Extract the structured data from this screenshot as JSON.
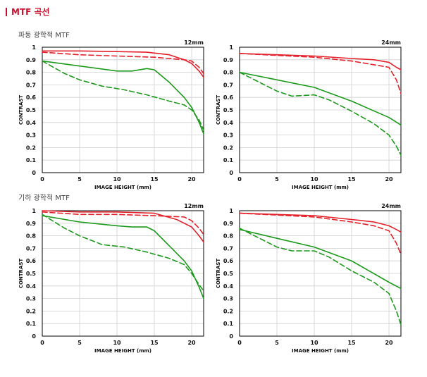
{
  "header": {
    "title": "MTF 곡선"
  },
  "sections": [
    {
      "title": "파동 광학적 MTF"
    },
    {
      "title": "기하 광학적 MTF"
    }
  ],
  "colors": {
    "sagittal_red": "#e4202a",
    "meridional_red": "#e4202a",
    "green": "#1c9a1c",
    "grid": "#cfcfcf"
  },
  "chart_data": [
    {
      "type": "line",
      "section": "파동 광학적 MTF",
      "focal_length": "12mm",
      "xlabel": "IMAGE HEIGHT (mm)",
      "ylabel": "CONTRAST",
      "xlim": [
        0,
        21.6
      ],
      "ylim": [
        0,
        1
      ],
      "xticks": [
        0,
        5,
        10,
        15,
        20
      ],
      "yticks": [
        0,
        0.1,
        0.2,
        0.3,
        0.4,
        0.5,
        0.6,
        0.7,
        0.8,
        0.9,
        1
      ],
      "grid": true,
      "series": [
        {
          "color": "red",
          "dashed": false,
          "x": [
            0,
            5,
            10,
            14,
            17,
            19,
            20,
            21,
            21.6
          ],
          "y": [
            0.97,
            0.97,
            0.965,
            0.96,
            0.94,
            0.9,
            0.87,
            0.81,
            0.76
          ]
        },
        {
          "color": "red",
          "dashed": true,
          "x": [
            0,
            5,
            10,
            15,
            19,
            20,
            21,
            21.6
          ],
          "y": [
            0.96,
            0.94,
            0.93,
            0.92,
            0.9,
            0.89,
            0.84,
            0.79
          ]
        },
        {
          "color": "green",
          "dashed": false,
          "x": [
            0,
            5,
            10,
            12,
            14,
            15,
            17,
            19,
            20,
            21,
            21.6
          ],
          "y": [
            0.89,
            0.85,
            0.81,
            0.81,
            0.83,
            0.82,
            0.72,
            0.6,
            0.52,
            0.4,
            0.31
          ]
        },
        {
          "color": "green",
          "dashed": true,
          "x": [
            0,
            3,
            5,
            8,
            11,
            14,
            17,
            19,
            20,
            21,
            21.6
          ],
          "y": [
            0.89,
            0.79,
            0.74,
            0.69,
            0.66,
            0.62,
            0.57,
            0.54,
            0.5,
            0.42,
            0.34
          ]
        }
      ]
    },
    {
      "type": "line",
      "section": "파동 광학적 MTF",
      "focal_length": "24mm",
      "xlabel": "IMAGE HEIGHT (mm)",
      "ylabel": "CONTRAST",
      "xlim": [
        0,
        21.6
      ],
      "ylim": [
        0,
        1
      ],
      "xticks": [
        0,
        5,
        10,
        15,
        20
      ],
      "yticks": [
        0,
        0.1,
        0.2,
        0.3,
        0.4,
        0.5,
        0.6,
        0.7,
        0.8,
        0.9,
        1
      ],
      "grid": true,
      "series": [
        {
          "color": "red",
          "dashed": false,
          "x": [
            0,
            5,
            10,
            15,
            18,
            20,
            21,
            21.6
          ],
          "y": [
            0.95,
            0.94,
            0.93,
            0.91,
            0.9,
            0.88,
            0.84,
            0.82
          ]
        },
        {
          "color": "red",
          "dashed": true,
          "x": [
            0,
            5,
            10,
            15,
            18,
            20,
            21,
            21.6
          ],
          "y": [
            0.95,
            0.935,
            0.92,
            0.89,
            0.86,
            0.84,
            0.74,
            0.63
          ]
        },
        {
          "color": "green",
          "dashed": false,
          "x": [
            0,
            5,
            10,
            15,
            20,
            21.6
          ],
          "y": [
            0.8,
            0.74,
            0.68,
            0.57,
            0.44,
            0.38
          ]
        },
        {
          "color": "green",
          "dashed": true,
          "x": [
            0,
            3,
            5,
            7,
            10,
            12,
            15,
            18,
            20,
            21,
            21.6
          ],
          "y": [
            0.8,
            0.71,
            0.65,
            0.61,
            0.62,
            0.58,
            0.49,
            0.39,
            0.3,
            0.21,
            0.14
          ]
        }
      ]
    },
    {
      "type": "line",
      "section": "기하 광학적 MTF",
      "focal_length": "12mm",
      "xlabel": "IMAGE HEIGHT (mm)",
      "ylabel": "CONTRAST",
      "xlim": [
        0,
        21.6
      ],
      "ylim": [
        0,
        1
      ],
      "xticks": [
        0,
        5,
        10,
        15,
        20
      ],
      "yticks": [
        0,
        0.1,
        0.2,
        0.3,
        0.4,
        0.5,
        0.6,
        0.7,
        0.8,
        0.9,
        1
      ],
      "grid": true,
      "series": [
        {
          "color": "red",
          "dashed": false,
          "x": [
            0,
            5,
            10,
            15,
            18,
            20,
            21,
            21.6
          ],
          "y": [
            1.0,
            0.99,
            0.99,
            0.98,
            0.93,
            0.87,
            0.8,
            0.75
          ]
        },
        {
          "color": "red",
          "dashed": true,
          "x": [
            0,
            5,
            10,
            15,
            19,
            20,
            21,
            21.6
          ],
          "y": [
            0.99,
            0.97,
            0.97,
            0.96,
            0.95,
            0.92,
            0.86,
            0.81
          ]
        },
        {
          "color": "green",
          "dashed": false,
          "x": [
            0,
            5,
            10,
            12,
            14,
            15,
            17,
            19,
            20,
            21,
            21.6
          ],
          "y": [
            0.96,
            0.91,
            0.88,
            0.87,
            0.87,
            0.84,
            0.72,
            0.6,
            0.52,
            0.39,
            0.3
          ]
        },
        {
          "color": "green",
          "dashed": true,
          "x": [
            0,
            3,
            5,
            8,
            11,
            14,
            17,
            19,
            20,
            21,
            21.6
          ],
          "y": [
            0.97,
            0.86,
            0.8,
            0.73,
            0.71,
            0.67,
            0.62,
            0.57,
            0.5,
            0.41,
            0.36
          ]
        }
      ]
    },
    {
      "type": "line",
      "section": "기하 광학적 MTF",
      "focal_length": "24mm",
      "xlabel": "IMAGE HEIGHT (mm)",
      "ylabel": "CONTRAST",
      "xlim": [
        0,
        21.6
      ],
      "ylim": [
        0,
        1
      ],
      "xticks": [
        0,
        5,
        10,
        15,
        20
      ],
      "yticks": [
        0,
        0.1,
        0.2,
        0.3,
        0.4,
        0.5,
        0.6,
        0.7,
        0.8,
        0.9,
        1
      ],
      "grid": true,
      "series": [
        {
          "color": "red",
          "dashed": false,
          "x": [
            0,
            5,
            10,
            15,
            18,
            20,
            21,
            21.6
          ],
          "y": [
            0.98,
            0.97,
            0.96,
            0.93,
            0.91,
            0.88,
            0.85,
            0.83
          ]
        },
        {
          "color": "red",
          "dashed": true,
          "x": [
            0,
            5,
            10,
            15,
            18,
            20,
            21,
            21.6
          ],
          "y": [
            0.98,
            0.965,
            0.95,
            0.91,
            0.88,
            0.84,
            0.74,
            0.65
          ]
        },
        {
          "color": "green",
          "dashed": false,
          "x": [
            0,
            5,
            10,
            15,
            20,
            21.6
          ],
          "y": [
            0.85,
            0.78,
            0.71,
            0.6,
            0.43,
            0.38
          ]
        },
        {
          "color": "green",
          "dashed": true,
          "x": [
            0,
            3,
            5,
            7,
            10,
            12,
            15,
            18,
            20,
            21,
            21.6
          ],
          "y": [
            0.86,
            0.77,
            0.71,
            0.68,
            0.68,
            0.63,
            0.52,
            0.43,
            0.34,
            0.2,
            0.09
          ]
        }
      ]
    }
  ]
}
